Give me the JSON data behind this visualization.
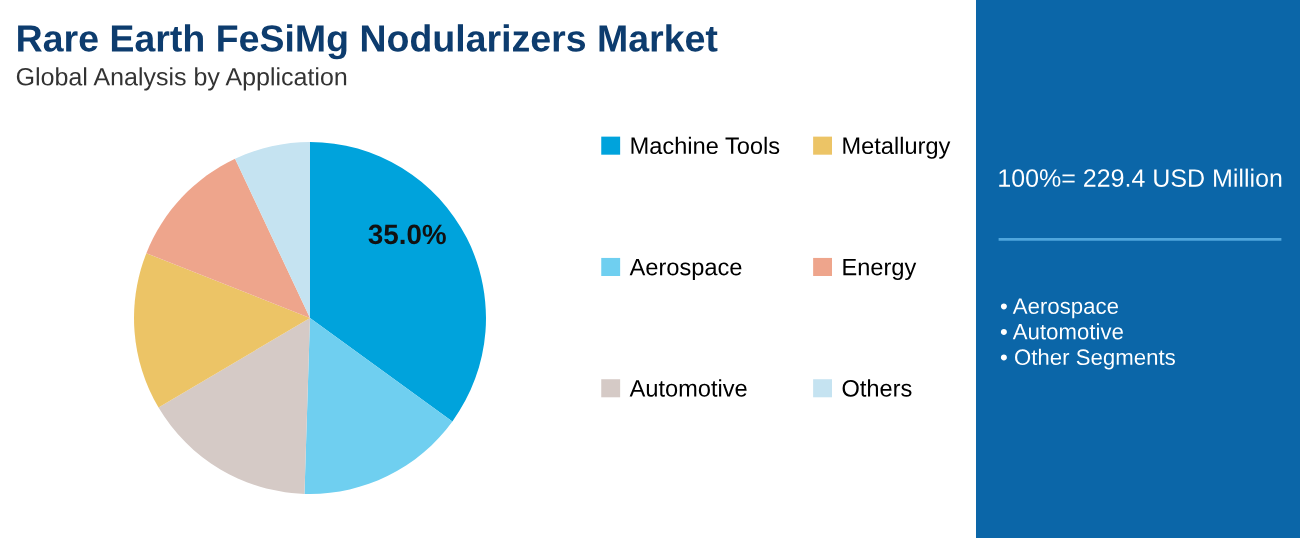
{
  "chart_data": {
    "type": "pie",
    "title": "Rare Earth FeSiMg Nodularizers Market",
    "subtitle": "Global Analysis by Application",
    "categories": [
      "Machine Tools",
      "Aerospace",
      "Automotive",
      "Metallurgy",
      "Energy",
      "Others"
    ],
    "values": [
      35.0,
      15.5,
      16,
      14.5,
      12,
      7
    ],
    "colors": [
      "#00a3dc",
      "#6fcff0",
      "#d5cac6",
      "#ecc466",
      "#eea58c",
      "#c5e3f1"
    ],
    "value_labels": [
      "35.0%",
      null,
      null,
      null,
      null,
      null
    ],
    "legend": "right",
    "annotations": [
      "100%= 229.4 USD Million",
      "• Aerospace\n• Automotive\n• Other Segments"
    ]
  }
}
